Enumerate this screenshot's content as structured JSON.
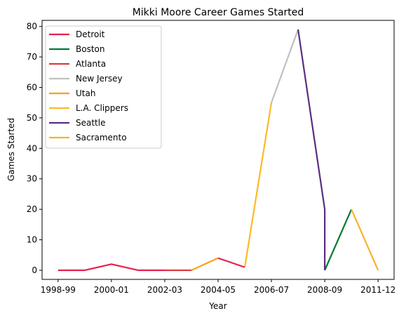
{
  "chart_data": {
    "type": "line",
    "title": "Mikki Moore Career Games Started",
    "xlabel": "Year",
    "ylabel": "Games Started",
    "ylim": [
      -3,
      82
    ],
    "yticks": [
      0,
      10,
      20,
      30,
      40,
      50,
      60,
      70,
      80
    ],
    "xticks": [
      "1998-99",
      "2000-01",
      "2002-03",
      "2004-05",
      "2006-07",
      "2008-09",
      "2011-12"
    ],
    "xticks_index": [
      0,
      2,
      4,
      6,
      8,
      10,
      12
    ],
    "x": [
      "1998-99",
      "1999-00",
      "2000-01",
      "2001-02",
      "2002-03",
      "2003-04",
      "2004-05",
      "2005-06",
      "2006-07",
      "2007-08",
      "2008-09",
      "2009-10",
      "2011-12"
    ],
    "legend": "upper left",
    "series": [
      {
        "name": "Detroit",
        "color": "#e8204f",
        "points": [
          [
            0,
            0
          ],
          [
            1,
            0
          ],
          [
            2,
            2
          ],
          [
            3,
            0
          ],
          [
            4,
            0
          ]
        ]
      },
      {
        "name": "Boston",
        "color": "#007a33",
        "points": [
          [
            10,
            0
          ],
          [
            11,
            20
          ]
        ]
      },
      {
        "name": "Atlanta",
        "color": "#e03a3e",
        "points": [
          [
            4,
            0
          ],
          [
            5,
            0
          ]
        ]
      },
      {
        "name": "New Jersey",
        "color": "#c0c0c0",
        "points": [
          [
            8,
            55
          ],
          [
            9,
            79
          ]
        ]
      },
      {
        "name": "Utah",
        "color": "#f9a01b",
        "points": [
          [
            5,
            0
          ],
          [
            6,
            4
          ]
        ]
      },
      {
        "name": "L.A. Clippers",
        "color": "#fdb927",
        "points": [
          [
            7,
            1
          ],
          [
            8,
            55
          ]
        ]
      },
      {
        "name": "Seattle",
        "color": "#5a2d81",
        "points": [
          [
            9,
            79
          ],
          [
            10,
            20
          ],
          [
            10,
            0
          ]
        ]
      },
      {
        "name": "Sacramento",
        "color": "#f7b32b",
        "points": [
          [
            11,
            20
          ],
          [
            12,
            0
          ]
        ]
      }
    ],
    "extra_segments": [
      {
        "series": "Detroit",
        "points": [
          [
            6,
            4
          ],
          [
            7,
            1
          ]
        ]
      }
    ]
  }
}
